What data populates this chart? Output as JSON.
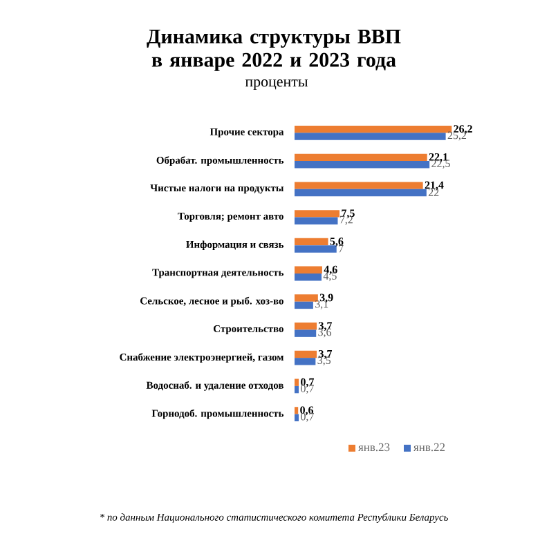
{
  "chart_data": {
    "type": "bar",
    "orientation": "horizontal",
    "title": "Динамика структуры ВВП\nв январе 2022 и 2023 года",
    "subtitle": "проценты",
    "categories": [
      "Прочие сектора",
      "Обрабат. промышленность",
      "Чистые налоги на продукты",
      "Торговля; ремонт авто",
      "Информация и связь",
      "Транспортная деятельность",
      "Сельское, лесное и рыб. хоз-во",
      "Строительство",
      "Снабжение электроэнергией, газом",
      "Водоснаб. и удаление отходов",
      "Горнодоб. промышленность"
    ],
    "series": [
      {
        "name": "янв.23",
        "color": "#ed7d31",
        "values": [
          26.2,
          22.1,
          21.4,
          7.5,
          5.6,
          4.6,
          3.9,
          3.7,
          3.7,
          0.7,
          0.6
        ],
        "value_labels": [
          "26,2",
          "22,1",
          "21,4",
          "7,5",
          "5,6",
          "4,6",
          "3,9",
          "3,7",
          "3,7",
          "0,7",
          "0,6"
        ]
      },
      {
        "name": "янв.22",
        "color": "#4472c4",
        "values": [
          25.2,
          22.5,
          22,
          7.2,
          7,
          4.5,
          3.1,
          3.6,
          3.5,
          0.7,
          0.7
        ],
        "value_labels": [
          "25,2",
          "22,5",
          "22",
          "7,2",
          "7",
          "4,5",
          "3,1",
          "3,6",
          "3,5",
          "0,7",
          "0,7"
        ]
      }
    ],
    "legend": "bottom",
    "annotations": [
      "* по данным Национального статистического комитета Республики Беларусь"
    ]
  }
}
